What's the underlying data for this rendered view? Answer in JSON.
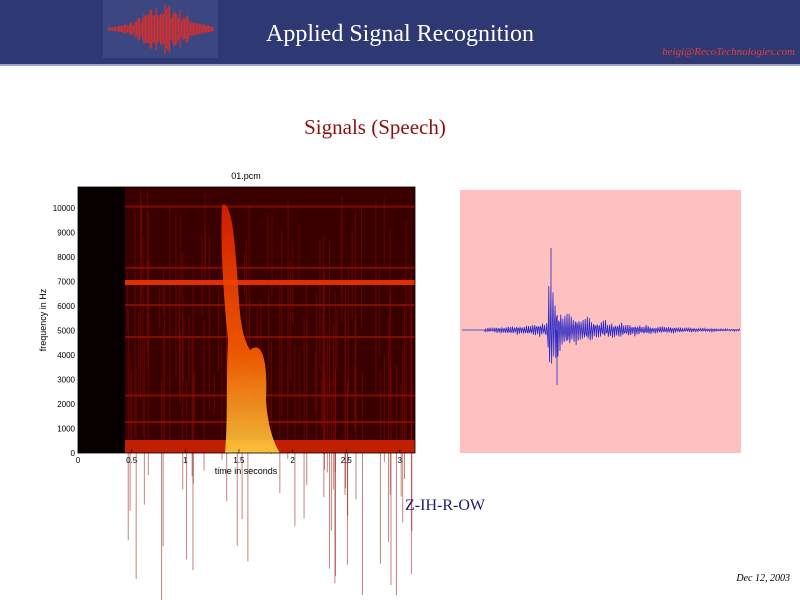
{
  "header": {
    "title": "Applied Signal Recognition",
    "email": "beigi@RecoTechnologies.com"
  },
  "slide": {
    "title": "Signals (Speech)",
    "caption": "Z-IH-R-OW"
  },
  "spectrogram": {
    "title": "01.pcm",
    "ylabel": "frequency in Hz",
    "xlabel": "time in seconds",
    "yticks": [
      0,
      1000,
      2000,
      3000,
      4000,
      5000,
      6000,
      7000,
      8000,
      9000,
      10000
    ],
    "xticks": [
      0,
      0.5,
      1,
      1.5,
      2,
      2.5,
      3
    ]
  },
  "footer": {
    "date": "Dec 12, 2003"
  }
}
